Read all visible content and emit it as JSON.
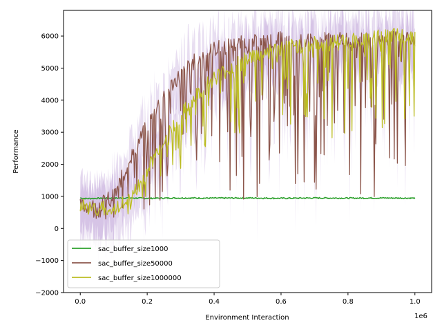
{
  "chart_data": {
    "type": "line",
    "title": "",
    "xlabel": "Environment Interaction",
    "ylabel": "Performance",
    "x_offset_label": "1e6",
    "xlim": [
      -0.05,
      1.05
    ],
    "ylim": [
      -2000,
      6800
    ],
    "x_ticks": [
      0.0,
      0.2,
      0.4,
      0.6,
      0.8,
      1.0
    ],
    "x_tick_labels": [
      "0.0",
      "0.2",
      "0.4",
      "0.6",
      "0.8",
      "1.0"
    ],
    "y_ticks": [
      -2000,
      -1000,
      0,
      1000,
      2000,
      3000,
      4000,
      5000,
      6000
    ],
    "y_tick_labels": [
      "−2000",
      "−1000",
      "0",
      "1000",
      "2000",
      "3000",
      "4000",
      "5000",
      "6000"
    ],
    "grid": false,
    "legend_position": "lower-left",
    "variance_band_color": "#9467bd",
    "series": [
      {
        "name": "sac_buffer_size1000",
        "color": "#2ca02c",
        "x": [
          0.0,
          0.02,
          0.05,
          0.1,
          0.15,
          0.2,
          0.3,
          0.4,
          0.5,
          0.6,
          0.7,
          0.8,
          0.9,
          1.0
        ],
        "values": [
          950,
          930,
          940,
          945,
          950,
          940,
          950,
          945,
          950,
          940,
          950,
          945,
          950,
          945
        ]
      },
      {
        "name": "sac_buffer_size50000",
        "color": "#8c564b",
        "x": [
          0.0,
          0.05,
          0.1,
          0.15,
          0.2,
          0.25,
          0.3,
          0.35,
          0.4,
          0.45,
          0.5,
          0.55,
          0.6,
          0.65,
          0.7,
          0.75,
          0.8,
          0.85,
          0.9,
          0.95,
          1.0
        ],
        "values": [
          700,
          700,
          1000,
          2200,
          3200,
          4200,
          4800,
          5300,
          5600,
          5700,
          5800,
          5800,
          5900,
          5800,
          5850,
          5900,
          5900,
          5850,
          5900,
          5950,
          5950
        ],
        "low": [
          400,
          300,
          200,
          300,
          500,
          700,
          900,
          900,
          900,
          900,
          900,
          900,
          900,
          900,
          900,
          900,
          900,
          900,
          900,
          900,
          900
        ]
      },
      {
        "name": "sac_buffer_size1000000",
        "color": "#bcbd22",
        "x": [
          0.0,
          0.05,
          0.1,
          0.15,
          0.2,
          0.25,
          0.3,
          0.35,
          0.4,
          0.45,
          0.5,
          0.55,
          0.6,
          0.65,
          0.7,
          0.75,
          0.8,
          0.85,
          0.9,
          0.95,
          1.0
        ],
        "values": [
          700,
          650,
          600,
          900,
          1800,
          2800,
          3500,
          4200,
          4700,
          5000,
          5300,
          5500,
          5600,
          5700,
          5750,
          5800,
          5850,
          5900,
          5950,
          6000,
          6000
        ],
        "low": [
          400,
          400,
          400,
          400,
          700,
          1200,
          1800,
          2300,
          2600,
          2800,
          2800,
          2900,
          3000,
          3000,
          3000,
          2800,
          2900,
          3000,
          3100,
          3300,
          3500
        ]
      }
    ]
  }
}
